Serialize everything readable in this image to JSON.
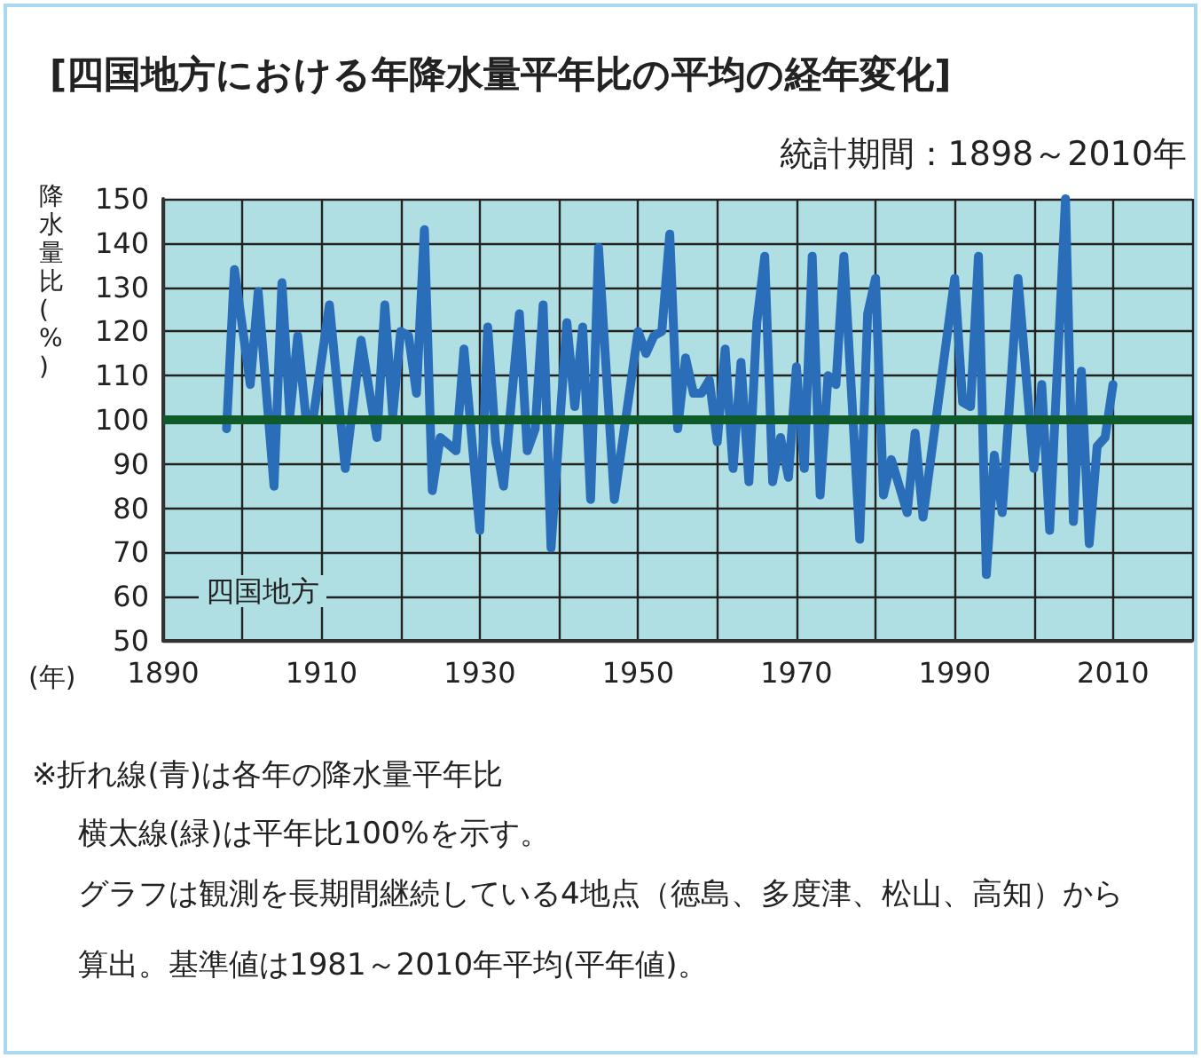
{
  "chart_data": {
    "type": "line",
    "title": "[四国地方における年降水量平年比の平均の経年変化]",
    "subtitle": "統計期間：1898～2010年",
    "xlabel": "(年)",
    "ylabel": "降水量比(%)",
    "annotations": [
      "四国地方",
      "※折れ線(青)は各年の降水量平年比",
      "横太線(緑)は平年比100%を示す。",
      "グラフは観測を長期間継続している4地点（徳島、多度津、松山、高知）から算出。基準値は1981～2010年平均(平年値)。"
    ],
    "x": [
      1898,
      1899,
      1901,
      1902,
      1904,
      1905,
      1906,
      1907,
      1908,
      1909,
      1911,
      1913,
      1915,
      1917,
      1918,
      1919,
      1920,
      1921,
      1922,
      1923,
      1924,
      1925,
      1927,
      1928,
      1930,
      1931,
      1932,
      1933,
      1935,
      1936,
      1937,
      1938,
      1939,
      1941,
      1942,
      1943,
      1944,
      1945,
      1947,
      1950,
      1951,
      1952,
      1953,
      1954,
      1955,
      1956,
      1957,
      1958,
      1959,
      1960,
      1961,
      1962,
      1963,
      1964,
      1965,
      1966,
      1967,
      1968,
      1969,
      1970,
      1971,
      1972,
      1973,
      1974,
      1975,
      1976,
      1978,
      1979,
      1980,
      1981,
      1982,
      1984,
      1985,
      1986,
      1988,
      1990,
      1991,
      1992,
      1993,
      1994,
      1995,
      1996,
      1998,
      2000,
      2001,
      2002,
      2004,
      2005,
      2006,
      2007,
      2008,
      2009,
      2010
    ],
    "series": [
      {
        "color": "#2a6db8",
        "values": [
          98,
          134,
          108,
          129,
          85,
          131,
          101,
          119,
          101,
          101,
          126,
          89,
          118,
          96,
          126,
          101,
          120,
          119,
          106,
          143,
          84,
          96,
          93,
          116,
          75,
          121,
          95,
          85,
          124,
          93,
          98,
          126,
          71,
          122,
          103,
          121,
          82,
          139,
          82,
          120,
          115,
          119,
          120,
          142,
          98,
          114,
          106,
          106,
          109,
          95,
          116,
          89,
          113,
          86,
          122,
          137,
          86,
          96,
          87,
          112,
          89,
          137,
          83,
          110,
          108,
          137,
          73,
          124,
          132,
          83,
          91,
          79,
          97,
          78,
          105,
          132,
          104,
          103,
          137,
          65,
          92,
          79,
          132,
          89,
          108,
          75,
          150,
          77,
          111,
          72,
          94,
          96,
          108
        ]
      }
    ],
    "xlim": [
      1890,
      2020
    ],
    "xticks": [
      1890,
      {
        "value": 1900,
        "label": null
      },
      1910,
      {
        "value": 1920,
        "label": null
      },
      1930,
      {
        "value": 1940,
        "label": null
      },
      1950,
      {
        "value": 1960,
        "label": null
      },
      1970,
      {
        "value": 1980,
        "label": null
      },
      1990,
      {
        "value": 2000,
        "label": null
      },
      2010,
      {
        "value": 2020,
        "label": null
      }
    ],
    "ylim": [
      50,
      150
    ],
    "yticks": [
      50,
      60,
      70,
      80,
      90,
      100,
      110,
      120,
      130,
      140,
      150
    ],
    "ref_lines": [
      {
        "axis": "y",
        "value": 100,
        "color": "#0f5a2a"
      }
    ],
    "grid": true,
    "marker": "none",
    "line_style": "solid"
  }
}
